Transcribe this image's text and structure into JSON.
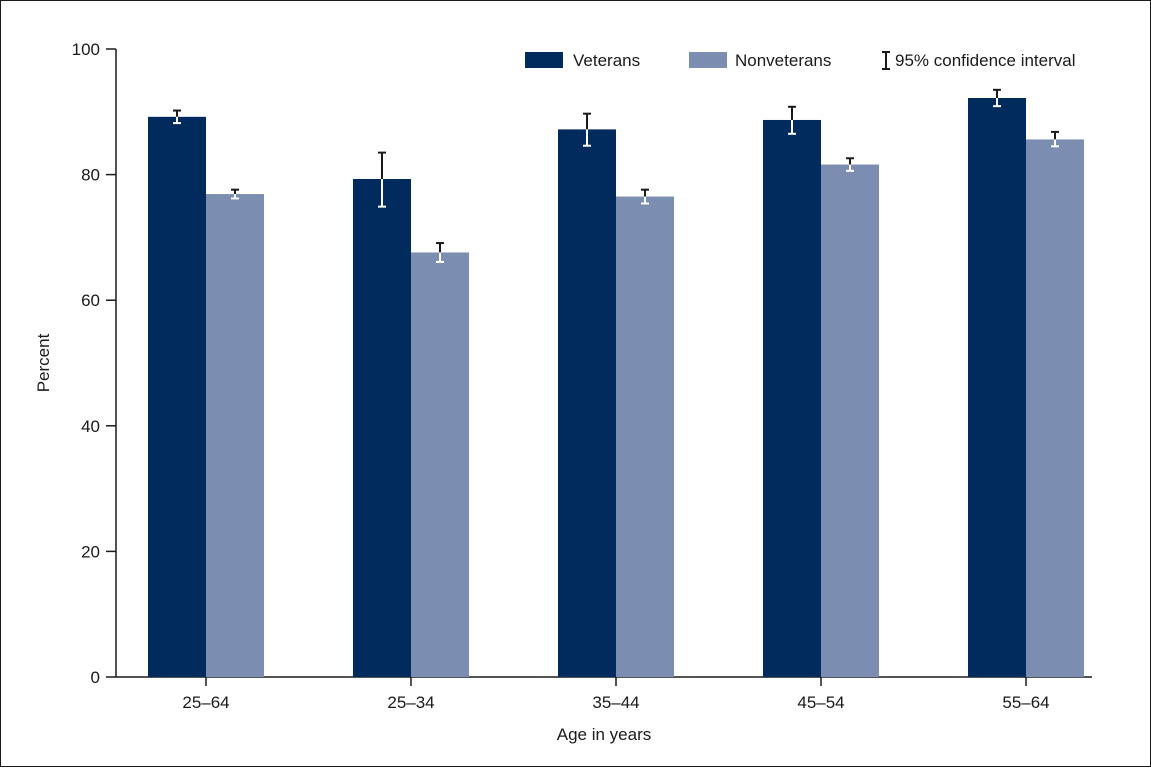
{
  "chart_data": {
    "type": "bar",
    "title": "",
    "xlabel": "Age in years",
    "ylabel": "Percent",
    "ylim": [
      0,
      100
    ],
    "yticks": [
      0,
      20,
      40,
      60,
      80,
      100
    ],
    "categories": [
      "25–64",
      "25–34",
      "35–44",
      "45–54",
      "55–64"
    ],
    "series": [
      {
        "name": "Veterans",
        "color": "#002b5c",
        "values": [
          89.2,
          79.3,
          87.2,
          88.7,
          92.2
        ],
        "ci_low": [
          88.2,
          74.9,
          84.6,
          86.5,
          90.9
        ],
        "ci_high": [
          90.2,
          83.5,
          89.7,
          90.8,
          93.5
        ]
      },
      {
        "name": "Nonveterans",
        "color": "#7b8db1",
        "values": [
          76.9,
          67.6,
          76.5,
          81.6,
          85.6
        ],
        "ci_low": [
          76.2,
          66.1,
          75.4,
          80.6,
          84.5
        ],
        "ci_high": [
          77.6,
          69.1,
          77.6,
          82.6,
          86.8
        ]
      }
    ],
    "grid": false,
    "legend": {
      "position": "top-right",
      "ci_label": "95% confidence interval"
    }
  }
}
